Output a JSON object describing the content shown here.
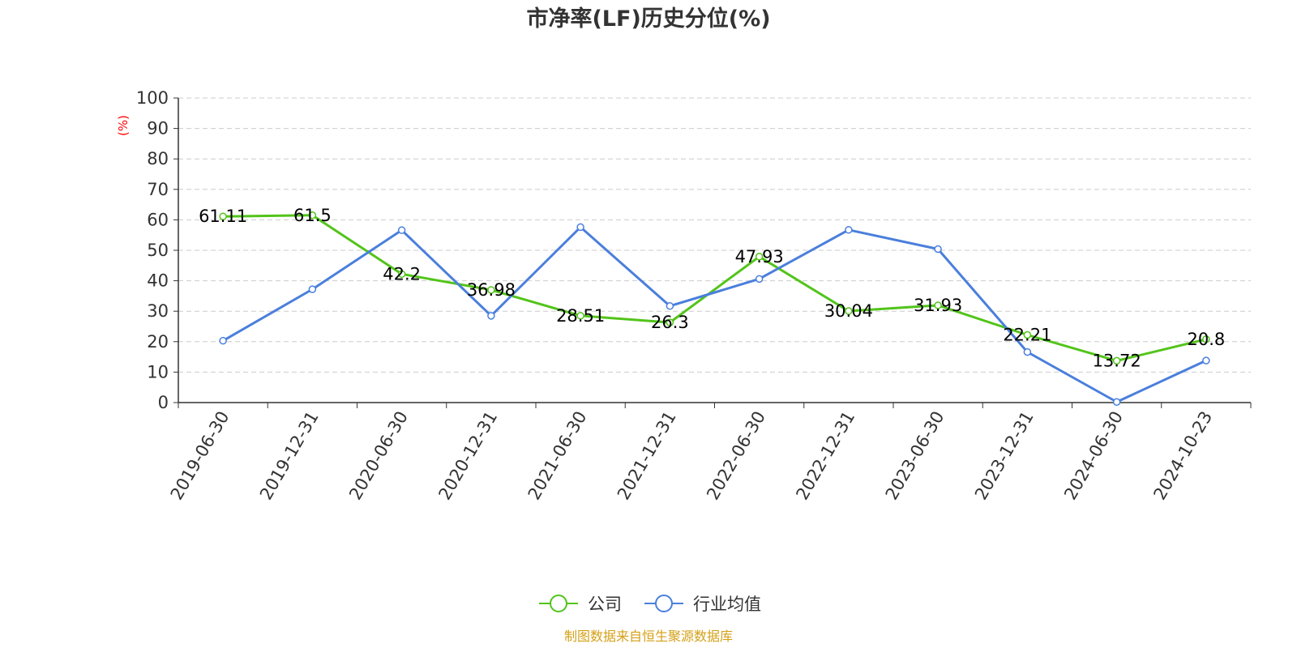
{
  "chart_data": {
    "type": "line",
    "title": "市净率(LF)历史分位(%)",
    "ylabel": "(%)",
    "ylim": [
      0,
      100
    ],
    "yticks": [
      "0",
      "10",
      "20",
      "30",
      "40",
      "50",
      "60",
      "70",
      "80",
      "90",
      "100"
    ],
    "categories": [
      "2019-06-30",
      "2019-12-31",
      "2020-06-30",
      "2020-12-31",
      "2021-06-30",
      "2021-12-31",
      "2022-06-30",
      "2022-12-31",
      "2023-06-30",
      "2023-12-31",
      "2024-06-30",
      "2024-10-23"
    ],
    "grid": true,
    "legend_position": "bottom",
    "series": [
      {
        "name": "公司",
        "color": "#52c41a",
        "values": [
          61.11,
          61.5,
          42.2,
          36.98,
          28.51,
          26.3,
          47.93,
          30.04,
          31.93,
          22.21,
          13.72,
          20.8
        ],
        "labels": [
          "61.11",
          "61.5",
          "42.2",
          "36.98",
          "28.51",
          "26.3",
          "47.93",
          "30.04",
          "31.93",
          "22.21",
          "13.72",
          "20.8"
        ]
      },
      {
        "name": "行业均值",
        "color": "#4a7fdc",
        "values": [
          20.3,
          37.2,
          56.6,
          28.5,
          57.6,
          31.7,
          40.6,
          56.7,
          50.4,
          16.6,
          0.2,
          13.8
        ]
      }
    ],
    "source": "制图数据来自恒生聚源数据库",
    "source_color": "#d4a017"
  }
}
